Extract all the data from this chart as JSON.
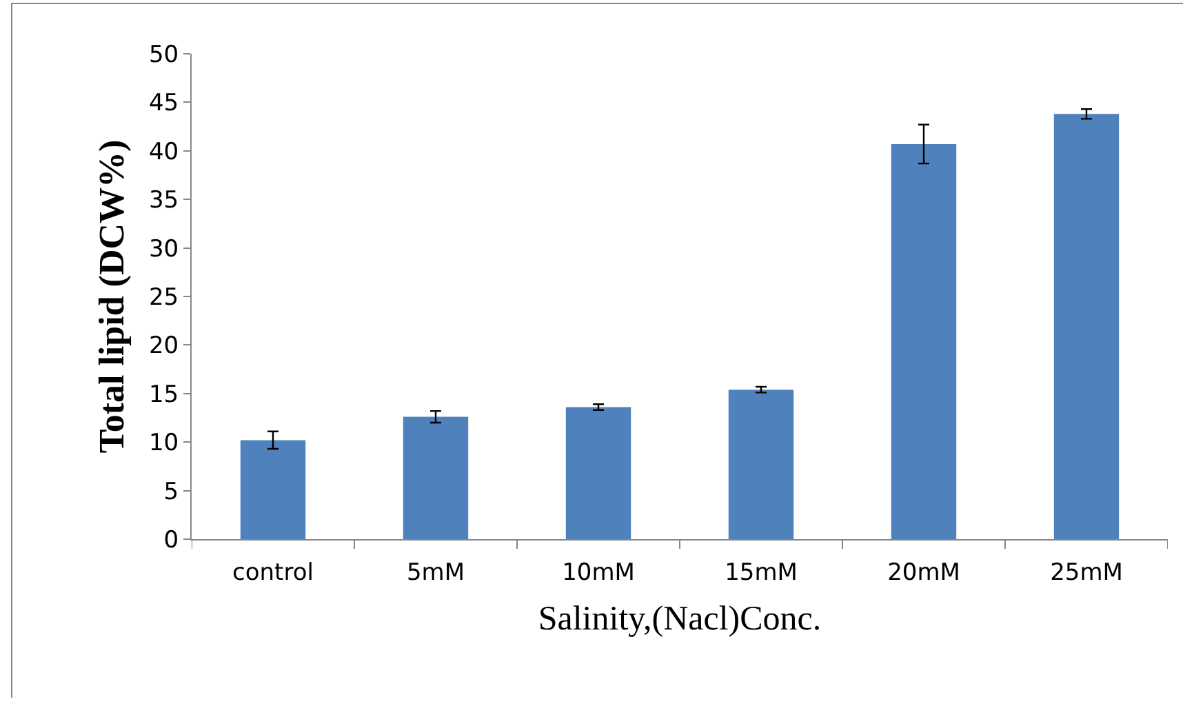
{
  "chart_data": {
    "type": "bar",
    "xlabel": "Salinity,(Nacl)Conc.",
    "ylabel": "Total lipid (DCW%)",
    "categories": [
      "control",
      "5mM",
      "10mM",
      "15mM",
      "20mM",
      "25mM"
    ],
    "values": [
      10.2,
      12.6,
      13.6,
      15.4,
      40.7,
      43.8
    ],
    "errors": [
      0.9,
      0.6,
      0.3,
      0.3,
      2,
      0.5
    ],
    "color": "#4f81bd",
    "ylim": [
      0,
      50
    ],
    "yticks": [
      0,
      5,
      10,
      15,
      20,
      25,
      30,
      35,
      40,
      45,
      50
    ],
    "grid": false,
    "legend": false
  }
}
